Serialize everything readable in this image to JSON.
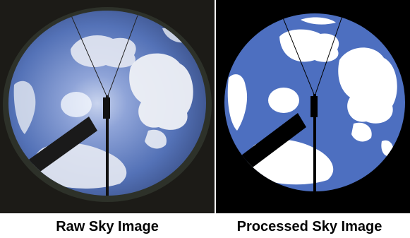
{
  "captions": {
    "raw": "Raw Sky Image",
    "processed": "Processed Sky Image"
  },
  "colors": {
    "caption_text": "#000000",
    "raw_background": "#1c1b17",
    "processed_background": "#000000",
    "sky_blue": "#4d6fc0",
    "cloud_white": "#ffffff",
    "shadow_band": "#1a1a1a"
  }
}
